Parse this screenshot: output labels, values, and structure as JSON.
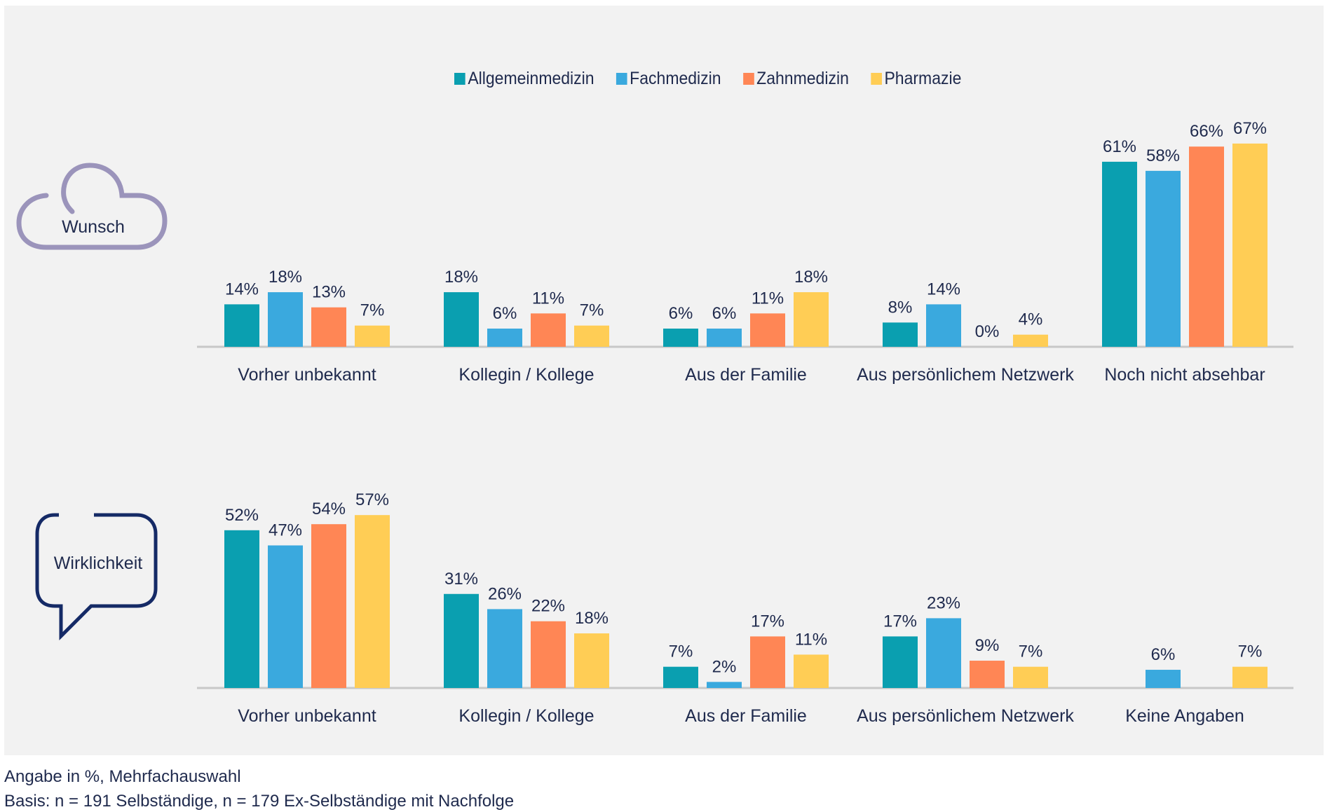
{
  "legend": [
    {
      "label": "Allgemeinmedizin",
      "color": "#0a9fb0"
    },
    {
      "label": "Fachmedizin",
      "color": "#3aa9de"
    },
    {
      "label": "Zahnmedizin",
      "color": "#ff8655"
    },
    {
      "label": "Pharmazie",
      "color": "#ffcd55"
    }
  ],
  "icons": {
    "wunsch": {
      "label": "Wunsch",
      "color": "#9b94bb"
    },
    "wirklichkeit": {
      "label": "Wirklichkeit",
      "color": "#152a66"
    }
  },
  "footer": {
    "note": "Angabe in %, Mehrfachauswahl",
    "basis": "Basis: n = 191 Selbständige, n = 179 Ex-Selbständige mit Nachfolge"
  },
  "chart_data": [
    {
      "type": "bar",
      "title": "Wunsch",
      "xlabel": "",
      "ylabel": "",
      "ylim": [
        0,
        70
      ],
      "grid": false,
      "legend_position": "top-center",
      "categories": [
        "Vorher unbekannt",
        "Kollegin /  Kollege",
        "Aus der Familie",
        "Aus persönlichem Netzwerk",
        "Noch nicht absehbar"
      ],
      "series": [
        {
          "name": "Allgemeinmedizin",
          "values": [
            14,
            18,
            6,
            8,
            61
          ]
        },
        {
          "name": "Fachmedizin",
          "values": [
            18,
            6,
            6,
            14,
            58
          ]
        },
        {
          "name": "Zahnmedizin",
          "values": [
            13,
            11,
            11,
            0,
            66
          ]
        },
        {
          "name": "Pharmazie",
          "values": [
            7,
            7,
            18,
            4,
            67
          ]
        }
      ]
    },
    {
      "type": "bar",
      "title": "Wirklichkeit",
      "xlabel": "",
      "ylabel": "",
      "ylim": [
        0,
        70
      ],
      "grid": false,
      "legend_position": "top-center",
      "categories": [
        "Vorher unbekannt",
        "Kollegin / Kollege",
        "Aus der Familie",
        "Aus persönlichem Netzwerk",
        "Keine Angaben"
      ],
      "series": [
        {
          "name": "Allgemeinmedizin",
          "values": [
            52,
            31,
            7,
            17,
            null
          ]
        },
        {
          "name": "Fachmedizin",
          "values": [
            47,
            26,
            2,
            23,
            6
          ]
        },
        {
          "name": "Zahnmedizin",
          "values": [
            54,
            22,
            17,
            9,
            null
          ]
        },
        {
          "name": "Pharmazie",
          "values": [
            57,
            18,
            11,
            7,
            7
          ]
        }
      ]
    }
  ]
}
